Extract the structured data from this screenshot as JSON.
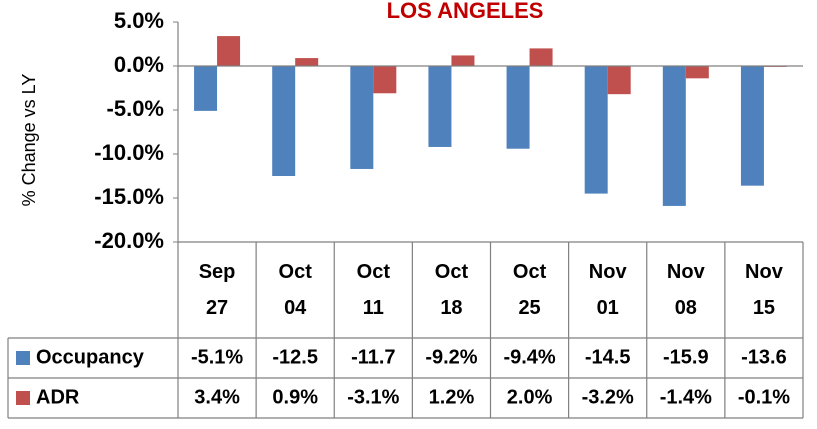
{
  "chart_data": {
    "type": "bar",
    "title": "LOS ANGELES",
    "y_label": "% Change vs LY",
    "categories": [
      "Sep 27",
      "Oct 04",
      "Oct 11",
      "Oct 18",
      "Oct 25",
      "Nov 01",
      "Nov 08",
      "Nov 15"
    ],
    "series": [
      {
        "name": "Occupancy",
        "color": "#4f81bd",
        "values": [
          -5.1,
          -12.5,
          -11.7,
          -9.2,
          -9.4,
          -14.5,
          -15.9,
          -13.6
        ],
        "value_labels": [
          "-5.1%",
          "-12.5",
          "-11.7",
          "-9.2%",
          "-9.4%",
          "-14.5",
          "-15.9",
          "-13.6"
        ]
      },
      {
        "name": "ADR",
        "color": "#c0504d",
        "values": [
          3.4,
          0.9,
          -3.1,
          1.2,
          2.0,
          -3.2,
          -1.4,
          -0.1
        ],
        "value_labels": [
          "3.4%",
          "0.9%",
          "-3.1%",
          "1.2%",
          "2.0%",
          "-3.2%",
          "-1.4%",
          "-0.1%"
        ]
      }
    ],
    "ylim": [
      -20,
      5
    ],
    "yticks": [
      {
        "value": 5,
        "label": "5.0%"
      },
      {
        "value": 0,
        "label": "0.0%"
      },
      {
        "value": -5,
        "label": "-5.0%"
      },
      {
        "value": -10,
        "label": "-10.0%"
      },
      {
        "value": -15,
        "label": "-15.0%"
      },
      {
        "value": -20,
        "label": "-20.0%"
      }
    ]
  }
}
